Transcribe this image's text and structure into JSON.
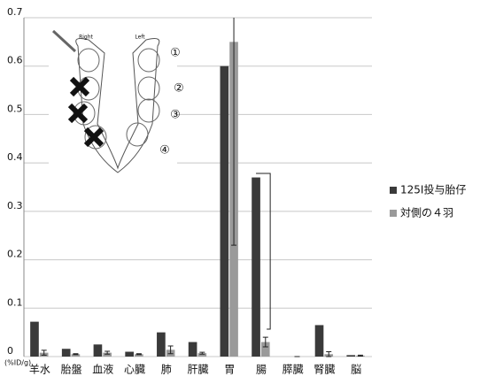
{
  "chart_data": {
    "type": "bar",
    "categories": [
      "羊水",
      "胎盤",
      "血液",
      "心臓",
      "肺",
      "肝臓",
      "胃",
      "腸",
      "膵臓",
      "腎臓",
      "脳"
    ],
    "series": [
      {
        "name": "125I投与胎仔",
        "color": "#3a3a3a",
        "values": [
          0.072,
          0.016,
          0.025,
          0.01,
          0.05,
          0.03,
          0.6,
          0.37,
          0,
          0.065,
          0.003
        ]
      },
      {
        "name": "対側の４羽",
        "color": "#9a9a9a",
        "values": [
          0.008,
          0.005,
          0.008,
          0.005,
          0.014,
          0.007,
          0.65,
          0.03,
          0,
          0.005,
          0.002
        ],
        "errors": [
          0.005,
          0.001,
          0.003,
          0.001,
          0.008,
          0.002,
          0.42,
          0.01,
          0,
          0.005,
          0.001
        ]
      }
    ],
    "y_label": "(%ID/g)",
    "ylim": [
      0,
      0.7
    ],
    "yticks": [
      0,
      0.1,
      0.2,
      0.3,
      0.4,
      0.5,
      0.6,
      0.7
    ],
    "grid": true,
    "legend": "right",
    "inset_labels": [
      "Right",
      "Left",
      "①",
      "②",
      "③",
      "④"
    ]
  }
}
